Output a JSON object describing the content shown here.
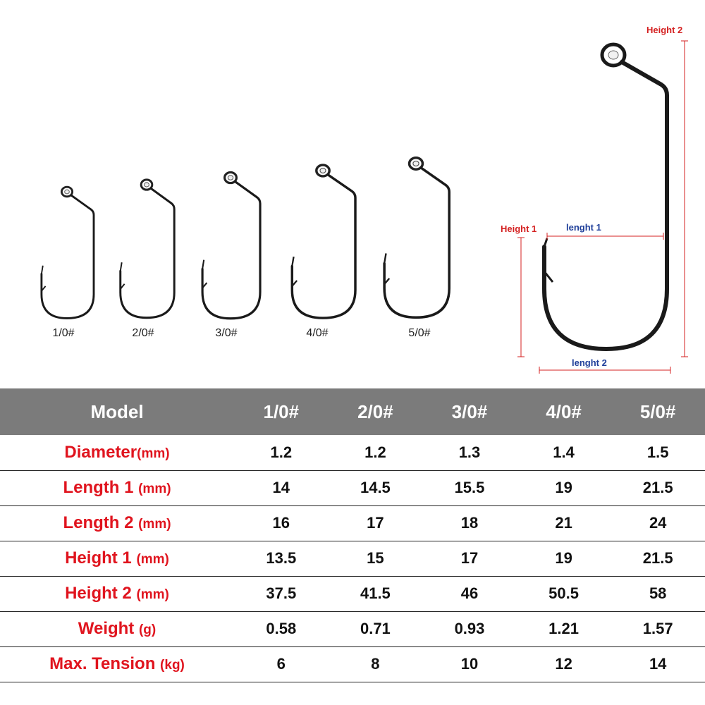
{
  "hooks": {
    "labels": [
      "1/0#",
      "2/0#",
      "3/0#",
      "4/0#",
      "5/0#"
    ]
  },
  "dimensions": {
    "height2": "Height 2",
    "height1": "Height 1",
    "length1": "lenght 1",
    "length2": "lenght 2"
  },
  "table": {
    "header": [
      "Model",
      "1/0#",
      "2/0#",
      "3/0#",
      "4/0#",
      "5/0#"
    ],
    "rows": [
      {
        "label": "Diameter",
        "unit": "(mm)",
        "values": [
          "1.2",
          "1.2",
          "1.3",
          "1.4",
          "1.5"
        ]
      },
      {
        "label": "Length 1 ",
        "unit": "(mm)",
        "values": [
          "14",
          "14.5",
          "15.5",
          "19",
          "21.5"
        ]
      },
      {
        "label": "Length 2 ",
        "unit": "(mm)",
        "values": [
          "16",
          "17",
          "18",
          "21",
          "24"
        ]
      },
      {
        "label": "Height 1 ",
        "unit": "(mm)",
        "values": [
          "13.5",
          "15",
          "17",
          "19",
          "21.5"
        ]
      },
      {
        "label": "Height 2 ",
        "unit": "(mm)",
        "values": [
          "37.5",
          "41.5",
          "46",
          "50.5",
          "58"
        ]
      },
      {
        "label": "Weight ",
        "unit": "(g)",
        "values": [
          "0.58",
          "0.71",
          "0.93",
          "1.21",
          "1.57"
        ]
      },
      {
        "label": "Max. Tension ",
        "unit": "(kg)",
        "values": [
          "6",
          "8",
          "10",
          "12",
          "14"
        ]
      }
    ]
  },
  "colors": {
    "header_bg": "#7b7b7b",
    "label_red": "#e0141e",
    "dim_red": "#d42020",
    "dim_blue": "#1f3f9a"
  }
}
